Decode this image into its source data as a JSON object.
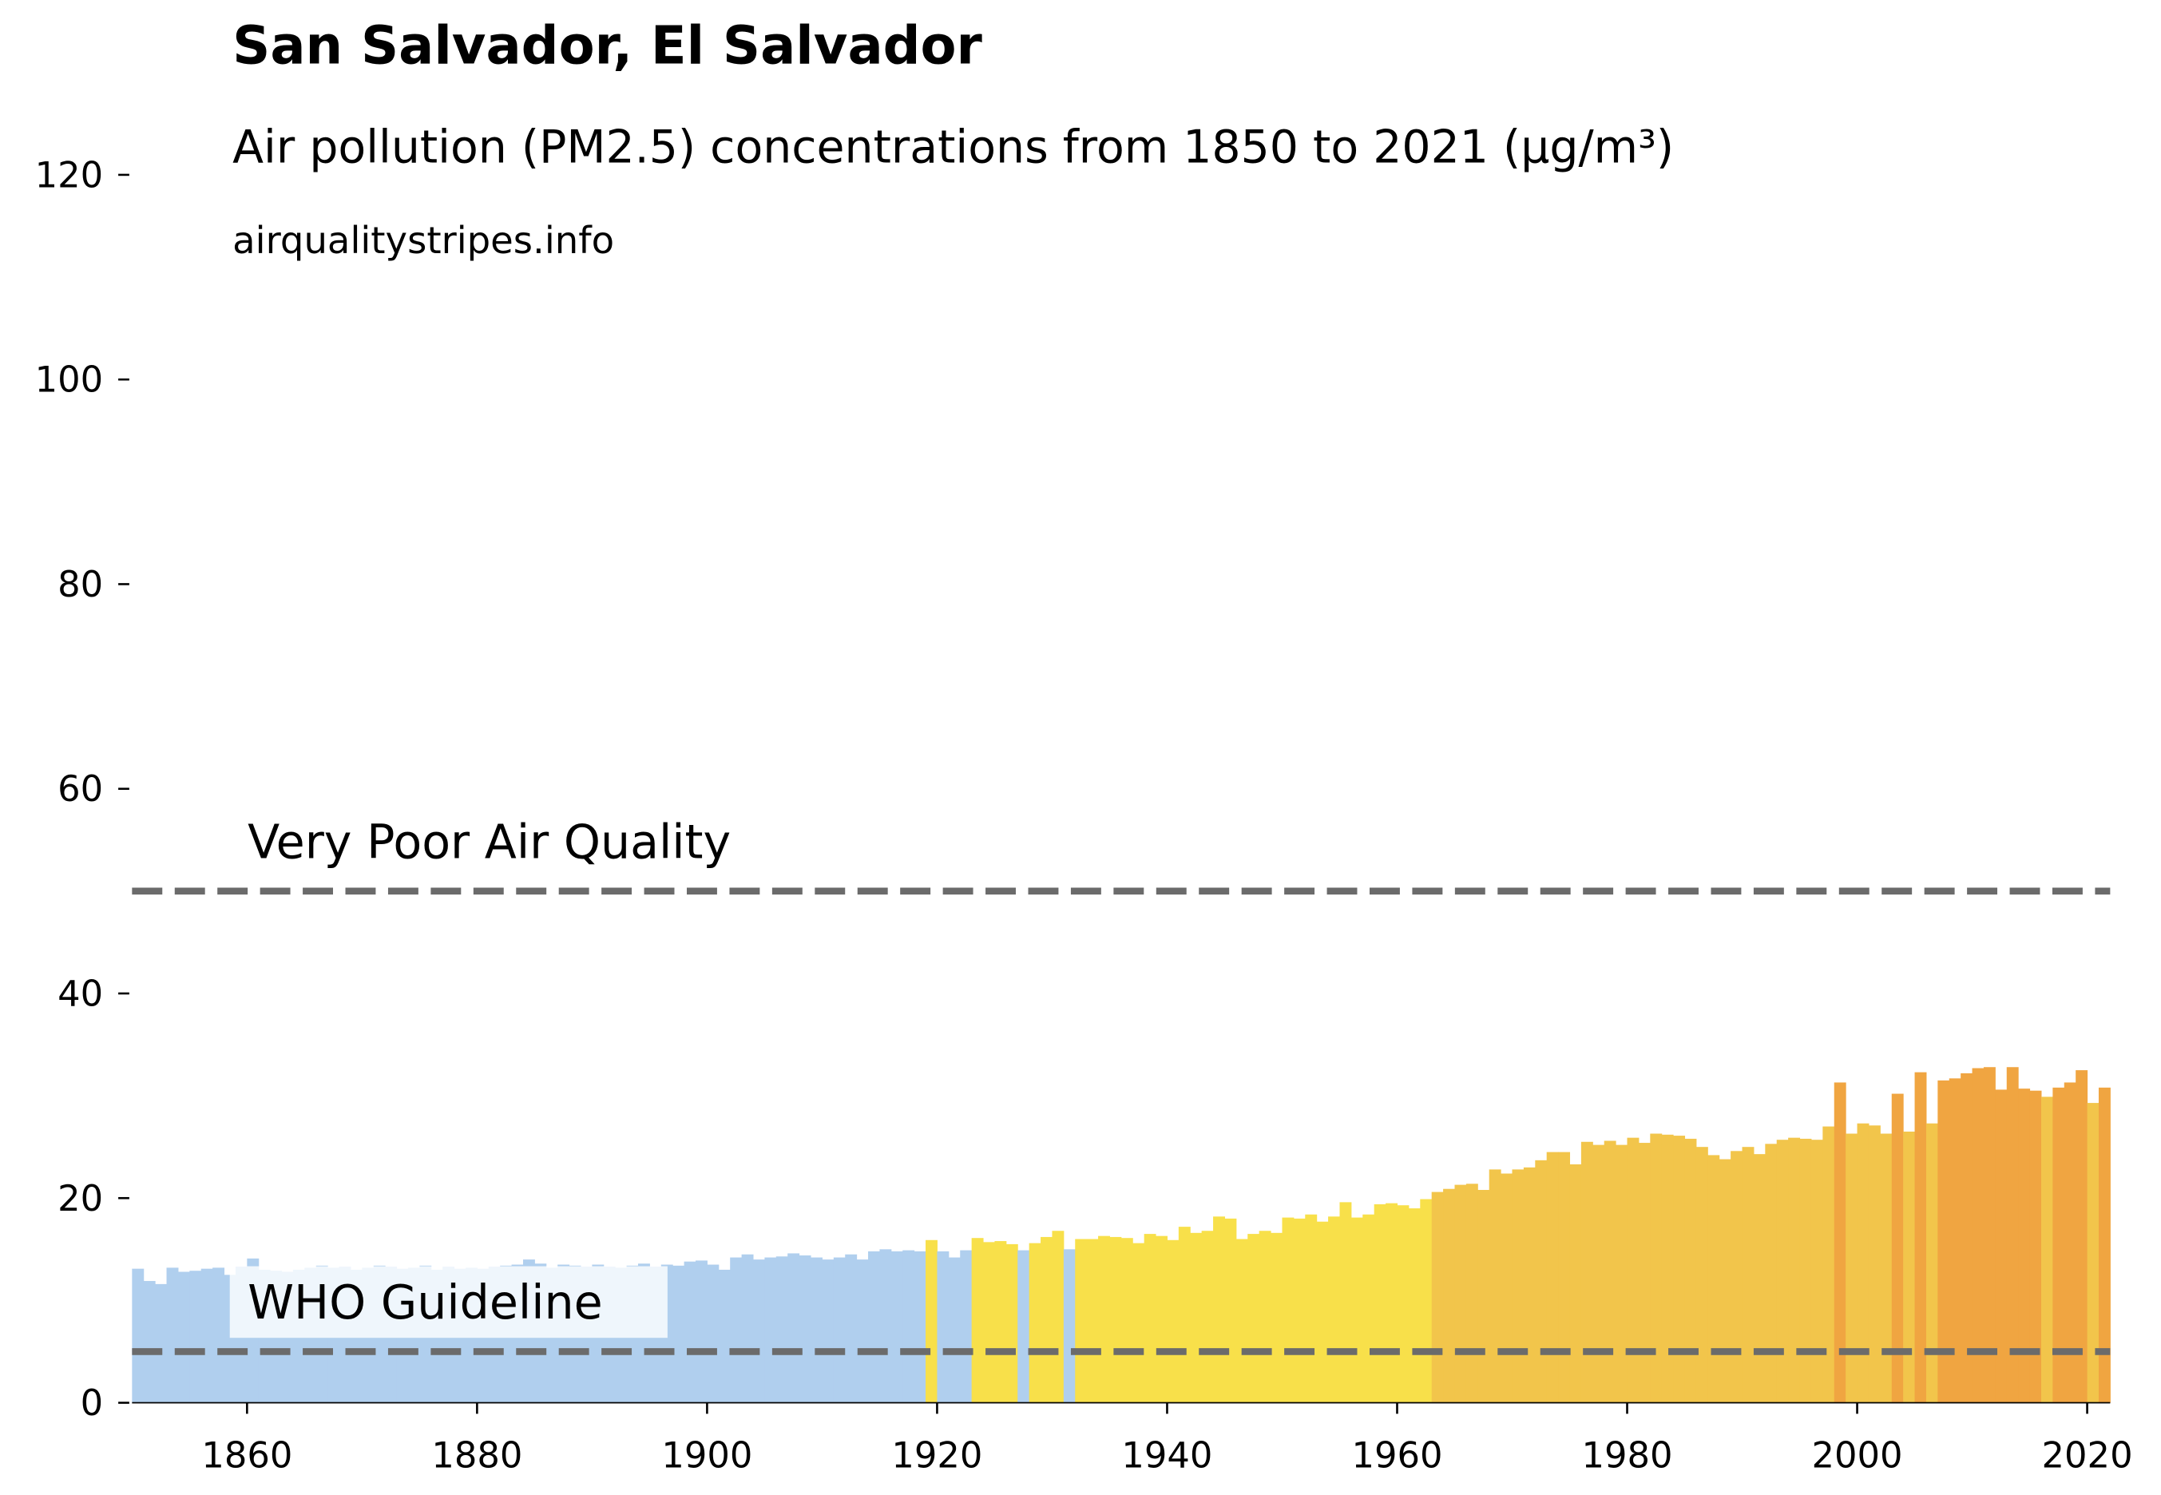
{
  "chart_data": {
    "type": "bar",
    "title": "San Salvador, El Salvador",
    "subtitle": "Air pollution (PM2.5) concentrations from 1850 to 2021 (µg/m³)",
    "source": "airqualitystripes.info",
    "x": [
      1850,
      1851,
      1852,
      1853,
      1854,
      1855,
      1856,
      1857,
      1858,
      1859,
      1860,
      1861,
      1862,
      1863,
      1864,
      1865,
      1866,
      1867,
      1868,
      1869,
      1870,
      1871,
      1872,
      1873,
      1874,
      1875,
      1876,
      1877,
      1878,
      1879,
      1880,
      1881,
      1882,
      1883,
      1884,
      1885,
      1886,
      1887,
      1888,
      1889,
      1890,
      1891,
      1892,
      1893,
      1894,
      1895,
      1896,
      1897,
      1898,
      1899,
      1900,
      1901,
      1902,
      1903,
      1904,
      1905,
      1906,
      1907,
      1908,
      1909,
      1910,
      1911,
      1912,
      1913,
      1914,
      1915,
      1916,
      1917,
      1918,
      1919,
      1920,
      1921,
      1922,
      1923,
      1924,
      1925,
      1926,
      1927,
      1928,
      1929,
      1930,
      1931,
      1932,
      1933,
      1934,
      1935,
      1936,
      1937,
      1938,
      1939,
      1940,
      1941,
      1942,
      1943,
      1944,
      1945,
      1946,
      1947,
      1948,
      1949,
      1950,
      1951,
      1952,
      1953,
      1954,
      1955,
      1956,
      1957,
      1958,
      1959,
      1960,
      1961,
      1962,
      1963,
      1964,
      1965,
      1966,
      1967,
      1968,
      1969,
      1970,
      1971,
      1972,
      1973,
      1974,
      1975,
      1976,
      1977,
      1978,
      1979,
      1980,
      1981,
      1982,
      1983,
      1984,
      1985,
      1986,
      1987,
      1988,
      1989,
      1990,
      1991,
      1992,
      1993,
      1994,
      1995,
      1996,
      1997,
      1998,
      1999,
      2000,
      2001,
      2002,
      2003,
      2004,
      2005,
      2006,
      2007,
      2008,
      2009,
      2010,
      2011,
      2012,
      2013,
      2014,
      2015,
      2016,
      2017,
      2018,
      2019,
      2020,
      2021
    ],
    "values": [
      13.1,
      11.9,
      11.6,
      13.2,
      12.8,
      12.9,
      13.1,
      13.2,
      12.5,
      13.3,
      14.1,
      13.0,
      12.9,
      12.8,
      13.0,
      13.2,
      13.4,
      13.2,
      13.3,
      13.0,
      13.2,
      13.4,
      13.3,
      13.1,
      13.2,
      13.4,
      13.0,
      13.3,
      13.1,
      13.2,
      13.1,
      13.3,
      13.4,
      13.5,
      14.0,
      13.6,
      13.2,
      13.5,
      13.4,
      13.3,
      13.5,
      13.3,
      13.2,
      13.4,
      13.6,
      13.3,
      13.5,
      13.4,
      13.8,
      13.9,
      13.5,
      13.0,
      14.2,
      14.5,
      14.0,
      14.2,
      14.3,
      14.6,
      14.4,
      14.2,
      14.0,
      14.2,
      14.5,
      14.0,
      14.8,
      15.0,
      14.8,
      14.9,
      14.8,
      15.9,
      14.8,
      14.2,
      14.9,
      16.1,
      15.7,
      15.8,
      15.5,
      14.9,
      15.6,
      16.2,
      16.8,
      15.0,
      16.0,
      16.0,
      16.3,
      16.2,
      16.1,
      15.6,
      16.5,
      16.3,
      15.9,
      17.2,
      16.6,
      16.8,
      18.2,
      18.0,
      16.0,
      16.5,
      16.8,
      16.6,
      18.1,
      18.0,
      18.4,
      17.7,
      18.2,
      19.6,
      18.1,
      18.4,
      19.4,
      19.5,
      19.3,
      19.0,
      19.9,
      20.6,
      20.9,
      21.3,
      21.4,
      20.8,
      22.8,
      22.4,
      22.8,
      23.0,
      23.7,
      24.5,
      24.5,
      23.3,
      25.5,
      25.2,
      25.6,
      25.2,
      25.9,
      25.4,
      26.3,
      26.2,
      26.1,
      25.8,
      25.0,
      24.2,
      23.8,
      24.6,
      25.0,
      24.3,
      25.3,
      25.7,
      25.9,
      25.8,
      25.7,
      27.0,
      31.3,
      26.3,
      27.3,
      27.1,
      26.3,
      30.2,
      26.5,
      32.3,
      27.3,
      31.5,
      31.7,
      32.2,
      32.7,
      32.8,
      30.6,
      32.8,
      30.7,
      30.5,
      29.9,
      30.8,
      31.3,
      32.5,
      29.3,
      30.8
    ],
    "colors": [
      "#b0cfee",
      "#b0cfee",
      "#b0cfee",
      "#b0cfee",
      "#b0cfee",
      "#b0cfee",
      "#b0cfee",
      "#b0cfee",
      "#b0cfee",
      "#b0cfee",
      "#b0cfee",
      "#b0cfee",
      "#b0cfee",
      "#b0cfee",
      "#b0cfee",
      "#b0cfee",
      "#b0cfee",
      "#b0cfee",
      "#b0cfee",
      "#b0cfee",
      "#b0cfee",
      "#b0cfee",
      "#b0cfee",
      "#b0cfee",
      "#b0cfee",
      "#b0cfee",
      "#b0cfee",
      "#b0cfee",
      "#b0cfee",
      "#b0cfee",
      "#b0cfee",
      "#b0cfee",
      "#b0cfee",
      "#b0cfee",
      "#b0cfee",
      "#b0cfee",
      "#b0cfee",
      "#b0cfee",
      "#b0cfee",
      "#b0cfee",
      "#b0cfee",
      "#b0cfee",
      "#b0cfee",
      "#b0cfee",
      "#b0cfee",
      "#b0cfee",
      "#b0cfee",
      "#b0cfee",
      "#b0cfee",
      "#b0cfee",
      "#b0cfee",
      "#b0cfee",
      "#b0cfee",
      "#b0cfee",
      "#b0cfee",
      "#b0cfee",
      "#b0cfee",
      "#b0cfee",
      "#b0cfee",
      "#b0cfee",
      "#b0cfee",
      "#b0cfee",
      "#b0cfee",
      "#b0cfee",
      "#b0cfee",
      "#b0cfee",
      "#b0cfee",
      "#b0cfee",
      "#b0cfee",
      "#f8e04a",
      "#b0cfee",
      "#b0cfee",
      "#b0cfee",
      "#f8e04a",
      "#f8e04a",
      "#f8e04a",
      "#f8e04a",
      "#b0cfee",
      "#f8e04a",
      "#f8e04a",
      "#f8e04a",
      "#b0cfee",
      "#f8e04a",
      "#f8e04a",
      "#f8e04a",
      "#f8e04a",
      "#f8e04a",
      "#f8e04a",
      "#f8e04a",
      "#f8e04a",
      "#f8e04a",
      "#f8e04a",
      "#f8e04a",
      "#f8e04a",
      "#f8e04a",
      "#f8e04a",
      "#f8e04a",
      "#f8e04a",
      "#f8e04a",
      "#f8e04a",
      "#f8e04a",
      "#f8e04a",
      "#f8e04a",
      "#f8e04a",
      "#f8e04a",
      "#f8e04a",
      "#f8e04a",
      "#f8e04a",
      "#f8e04a",
      "#f8e04a",
      "#f8e04a",
      "#f8e04a",
      "#f8e04a",
      "#f2c54b",
      "#f2c54b",
      "#f2c54b",
      "#f2c54b",
      "#f2c54b",
      "#f2c54b",
      "#f2c54b",
      "#f2c54b",
      "#f2c54b",
      "#f2c54b",
      "#f2c54b",
      "#f2c54b",
      "#f2c54b",
      "#f2c54b",
      "#f2c54b",
      "#f2c54b",
      "#f2c54b",
      "#f2c54b",
      "#f2c54b",
      "#f2c54b",
      "#f2c54b",
      "#f2c54b",
      "#f2c54b",
      "#f2c54b",
      "#f2c54b",
      "#f2c54b",
      "#f2c54b",
      "#f2c54b",
      "#f2c54b",
      "#f2c54b",
      "#f2c54b",
      "#f2c54b",
      "#f2c54b",
      "#f2c54b",
      "#f2c54b",
      "#f0a541",
      "#f2c54b",
      "#f2c54b",
      "#f2c54b",
      "#f2c54b",
      "#f0a541",
      "#f2c54b",
      "#f0a541",
      "#f2c54b",
      "#f0a541",
      "#f0a541",
      "#f0a541",
      "#f0a541",
      "#f0a541",
      "#f0a541",
      "#f0a541",
      "#f0a541",
      "#f0a541",
      "#f2c54b",
      "#f0a541",
      "#f0a541",
      "#f0a541",
      "#f2c54b",
      "#f0a541"
    ],
    "xlim": [
      1850,
      2022
    ],
    "ylim": [
      0,
      120
    ],
    "xticks": [
      1860,
      1880,
      1900,
      1920,
      1940,
      1960,
      1980,
      2000,
      2020
    ],
    "yticks": [
      0,
      20,
      40,
      60,
      80,
      100,
      120
    ],
    "reference_lines": [
      {
        "value": 50,
        "label": "Very Poor Air Quality",
        "color": "#6b6b6b"
      },
      {
        "value": 5,
        "label": "WHO Guideline",
        "color": "#6b6b6b"
      }
    ]
  }
}
